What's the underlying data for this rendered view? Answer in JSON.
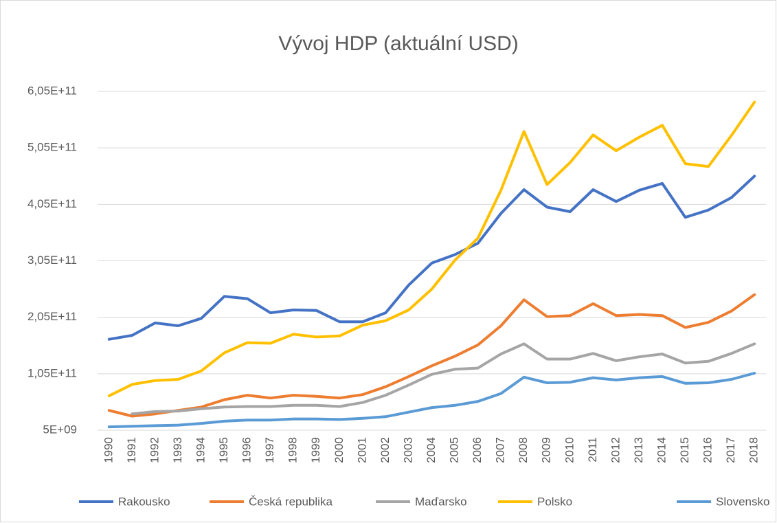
{
  "chart_data": {
    "type": "line",
    "title": "Vývoj HDP (aktuální USD)",
    "categories": [
      "1990",
      "1991",
      "1992",
      "1993",
      "1994",
      "1995",
      "1996",
      "1997",
      "1998",
      "1999",
      "2000",
      "2001",
      "2002",
      "2003",
      "2004",
      "2005",
      "2006",
      "2007",
      "2008",
      "2009",
      "2010",
      "2011",
      "2012",
      "2013",
      "2014",
      "2015",
      "2016",
      "2017",
      "2018"
    ],
    "ylim": [
      5000000000,
      605000000000
    ],
    "yticks": [
      {
        "value": 5000000000,
        "label": "5E+09"
      },
      {
        "value": 105000000000,
        "label": "1,05E+11"
      },
      {
        "value": 205000000000,
        "label": "2,05E+11"
      },
      {
        "value": 305000000000,
        "label": "3,05E+11"
      },
      {
        "value": 405000000000,
        "label": "4,05E+11"
      },
      {
        "value": 505000000000,
        "label": "5,05E+11"
      },
      {
        "value": 605000000000,
        "label": "6,05E+11"
      }
    ],
    "grid": true,
    "legend": "bottom",
    "series": [
      {
        "name": "Rakousko",
        "color": "#4472c4",
        "values": [
          166000000000.0,
          173000000000.0,
          195000000000.0,
          190000000000.0,
          203000000000.0,
          242000000000.0,
          238000000000.0,
          213000000000.0,
          218000000000.0,
          217000000000.0,
          197000000000.0,
          197000000000.0,
          213000000000.0,
          262000000000.0,
          301000000000.0,
          316000000000.0,
          336000000000.0,
          389000000000.0,
          431000000000.0,
          400000000000.0,
          392000000000.0,
          431000000000.0,
          410000000000.0,
          430000000000.0,
          442000000000.0,
          382000000000.0,
          395000000000.0,
          417000000000.0,
          455000000000.0
        ]
      },
      {
        "name": "Česká republika",
        "color": "#ed7d31",
        "values": [
          40000000000.0,
          30000000000.0,
          34000000000.0,
          40000000000.0,
          46000000000.0,
          59000000000.0,
          67000000000.0,
          62000000000.0,
          67000000000.0,
          65000000000.0,
          62000000000.0,
          68000000000.0,
          82000000000.0,
          100000000000.0,
          119000000000.0,
          136000000000.0,
          156000000000.0,
          190000000000.0,
          236000000000.0,
          206000000000.0,
          208000000000.0,
          229000000000.0,
          208000000000.0,
          210000000000.0,
          208000000000.0,
          187000000000.0,
          196000000000.0,
          216000000000.0,
          245000000000.0
        ]
      },
      {
        "name": "Maďarsko",
        "color": "#a5a5a5",
        "values": [
          null,
          34000000000.0,
          38000000000.0,
          39000000000.0,
          43000000000.0,
          46000000000.0,
          47000000000.0,
          47000000000.0,
          49000000000.0,
          49000000000.0,
          47000000000.0,
          54000000000.0,
          67000000000.0,
          85000000000.0,
          104000000000.0,
          113000000000.0,
          115000000000.0,
          140000000000.0,
          158000000000.0,
          131000000000.0,
          131000000000.0,
          141000000000.0,
          128000000000.0,
          135000000000.0,
          140000000000.0,
          124000000000.0,
          127000000000.0,
          141000000000.0,
          158000000000.0
        ]
      },
      {
        "name": "Polsko",
        "color": "#ffc000",
        "values": [
          66000000000.0,
          86000000000.0,
          93000000000.0,
          95000000000.0,
          110000000000.0,
          142000000000.0,
          160000000000.0,
          159000000000.0,
          175000000000.0,
          170000000000.0,
          172000000000.0,
          191000000000.0,
          199000000000.0,
          218000000000.0,
          255000000000.0,
          306000000000.0,
          345000000000.0,
          430000000000.0,
          534000000000.0,
          440000000000.0,
          479000000000.0,
          528000000000.0,
          500000000000.0,
          524000000000.0,
          545000000000.0,
          477000000000.0,
          472000000000.0,
          527000000000.0,
          586000000000.0
        ]
      },
      {
        "name": "Slovensko",
        "color": "#5b9bd5",
        "values": [
          11000000000.0,
          12000000000.0,
          13000000000.0,
          14000000000.0,
          17000000000.0,
          21000000000.0,
          23000000000.0,
          23000000000.0,
          25000000000.0,
          25000000000.0,
          24000000000.0,
          26000000000.0,
          29000000000.0,
          37000000000.0,
          45000000000.0,
          49000000000.0,
          56000000000.0,
          70000000000.0,
          99000000000.0,
          89000000000.0,
          90000000000.0,
          98000000000.0,
          94000000000.0,
          98000000000.0,
          100000000000.0,
          88000000000.0,
          89000000000.0,
          95000000000.0,
          106000000000.0
        ]
      }
    ]
  }
}
